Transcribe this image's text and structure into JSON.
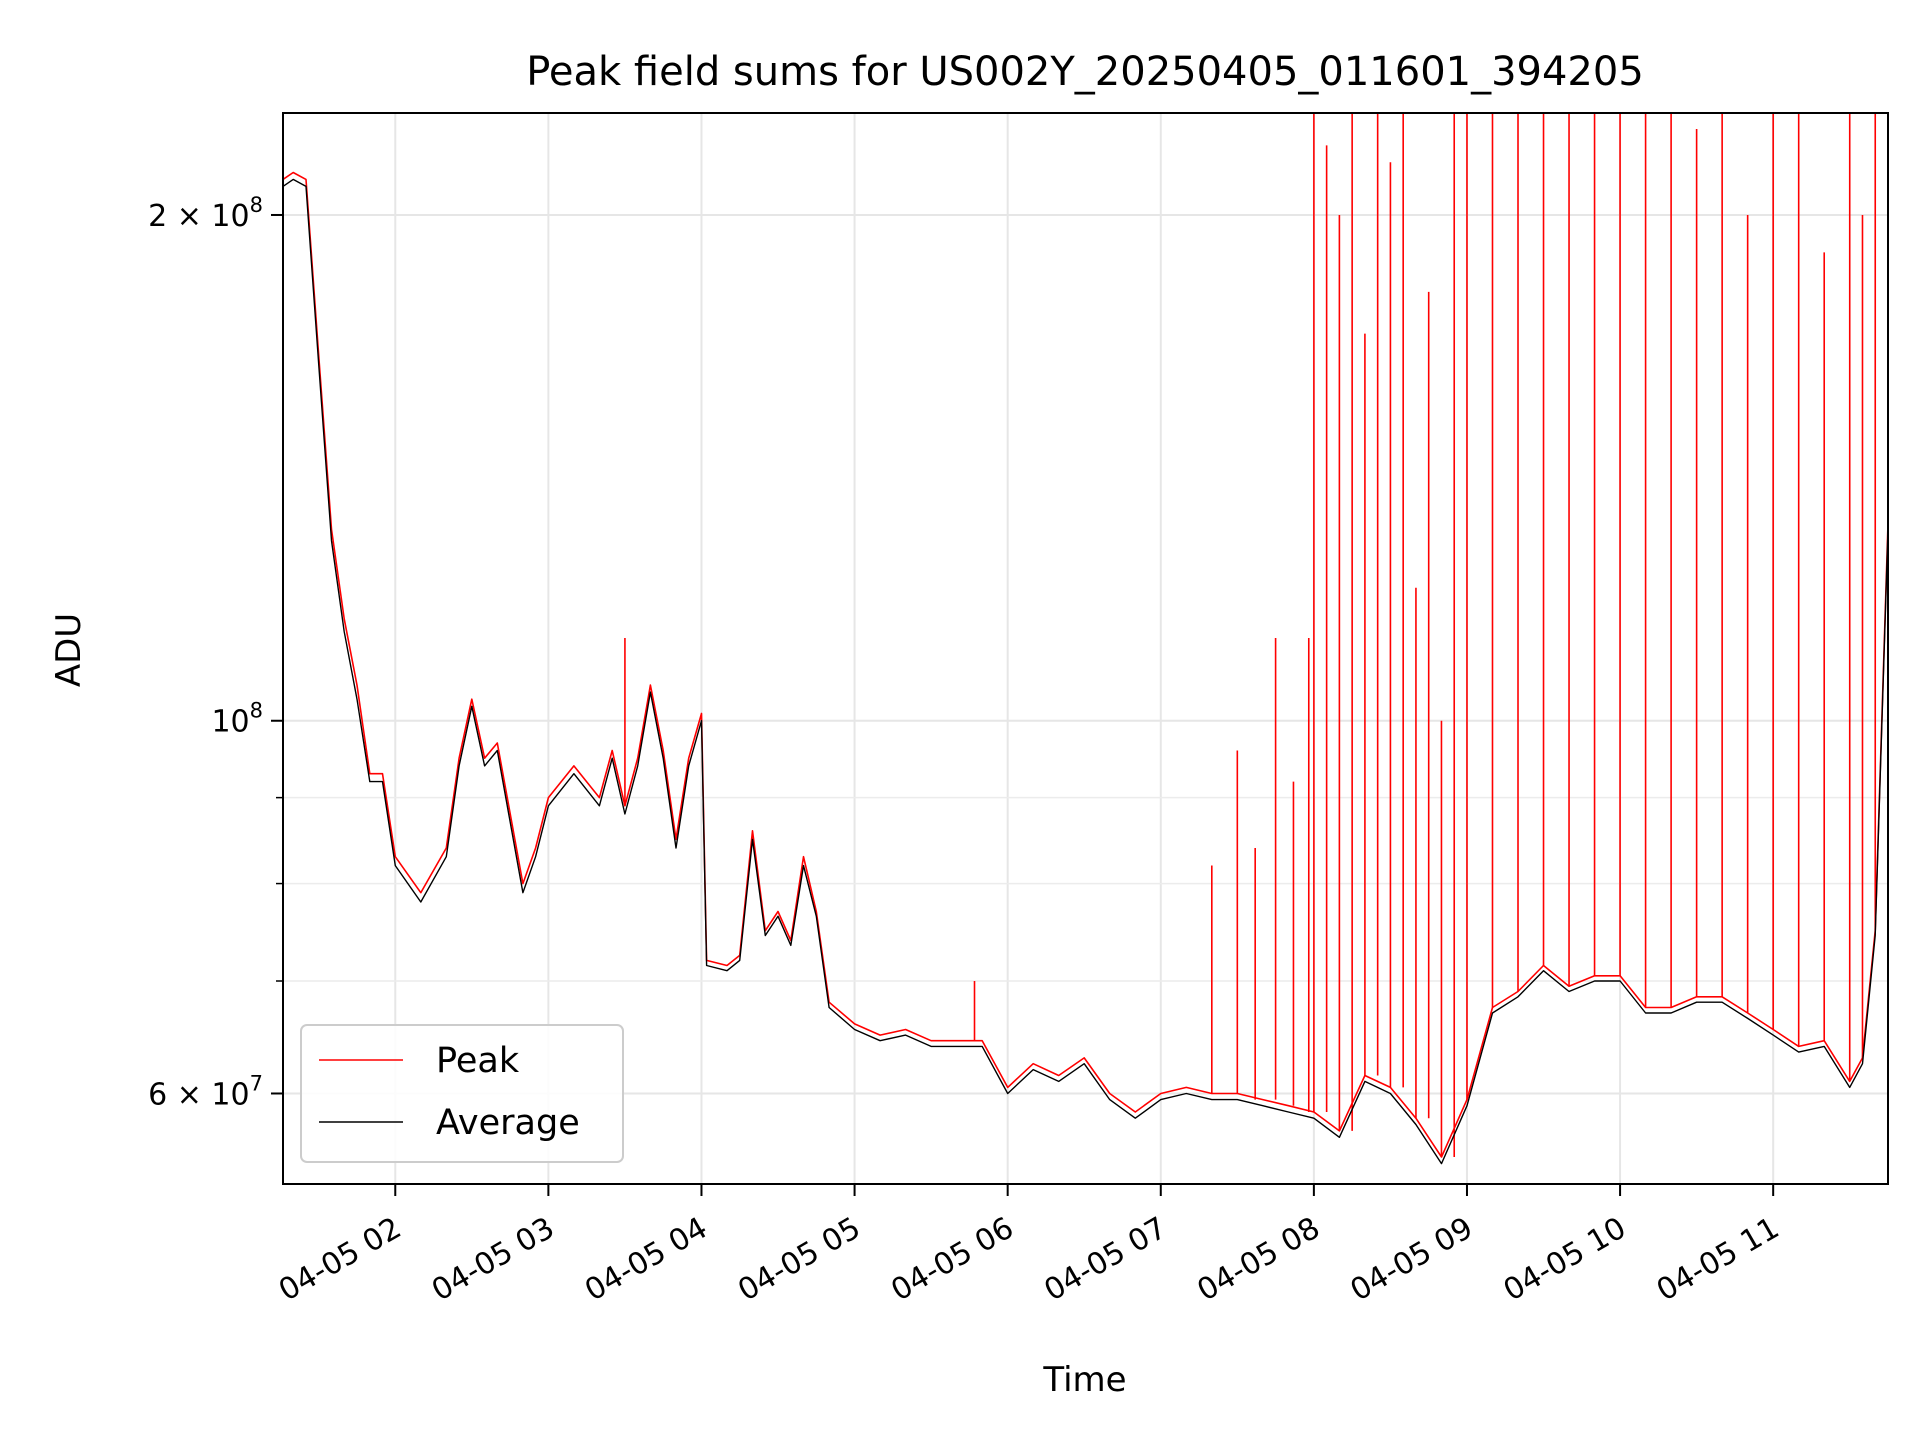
{
  "chart_data": {
    "type": "line",
    "title": "Peak field sums for US002Y_20250405_011601_394205",
    "xlabel": "Time",
    "ylabel": "ADU",
    "x_range": [
      "2025-04-05 01:16",
      "2025-04-05 11:45"
    ],
    "ylim": [
      53000000,
      230000000
    ],
    "y_scale": "log",
    "grid": true,
    "legend_position": "lower-left",
    "x_ticks": [
      {
        "time": "2025-04-05 02:00",
        "label": "04-05 02"
      },
      {
        "time": "2025-04-05 03:00",
        "label": "04-05 03"
      },
      {
        "time": "2025-04-05 04:00",
        "label": "04-05 04"
      },
      {
        "time": "2025-04-05 05:00",
        "label": "04-05 05"
      },
      {
        "time": "2025-04-05 06:00",
        "label": "04-05 06"
      },
      {
        "time": "2025-04-05 07:00",
        "label": "04-05 07"
      },
      {
        "time": "2025-04-05 08:00",
        "label": "04-05 08"
      },
      {
        "time": "2025-04-05 09:00",
        "label": "04-05 09"
      },
      {
        "time": "2025-04-05 10:00",
        "label": "04-05 10"
      },
      {
        "time": "2025-04-05 11:00",
        "label": "04-05 11"
      }
    ],
    "y_ticks": [
      {
        "value": 60000000,
        "base": "6 × 10",
        "exp": "7"
      },
      {
        "value": 100000000,
        "base": "10",
        "exp": "8"
      },
      {
        "value": 200000000,
        "base": "2 × 10",
        "exp": "8"
      }
    ],
    "y_minor_ticks": [
      70000000,
      80000000,
      90000000
    ],
    "series": [
      {
        "name": "Peak",
        "color": "#ff0000",
        "x": [
          "2025-04-05 01:16",
          "2025-04-05 01:20",
          "2025-04-05 01:25",
          "2025-04-05 01:30",
          "2025-04-05 01:35",
          "2025-04-05 01:40",
          "2025-04-05 01:45",
          "2025-04-05 01:50",
          "2025-04-05 01:55",
          "2025-04-05 02:00",
          "2025-04-05 02:10",
          "2025-04-05 02:20",
          "2025-04-05 02:25",
          "2025-04-05 02:30",
          "2025-04-05 02:35",
          "2025-04-05 02:40",
          "2025-04-05 02:50",
          "2025-04-05 02:55",
          "2025-04-05 03:00",
          "2025-04-05 03:10",
          "2025-04-05 03:20",
          "2025-04-05 03:25",
          "2025-04-05 03:30",
          "2025-04-05 03:35",
          "2025-04-05 03:40",
          "2025-04-05 03:45",
          "2025-04-05 03:50",
          "2025-04-05 03:55",
          "2025-04-05 04:00",
          "2025-04-05 04:02",
          "2025-04-05 04:10",
          "2025-04-05 04:15",
          "2025-04-05 04:20",
          "2025-04-05 04:25",
          "2025-04-05 04:30",
          "2025-04-05 04:35",
          "2025-04-05 04:40",
          "2025-04-05 04:45",
          "2025-04-05 04:50",
          "2025-04-05 05:00",
          "2025-04-05 05:10",
          "2025-04-05 05:20",
          "2025-04-05 05:30",
          "2025-04-05 05:40",
          "2025-04-05 05:50",
          "2025-04-05 06:00",
          "2025-04-05 06:10",
          "2025-04-05 06:20",
          "2025-04-05 06:30",
          "2025-04-05 06:40",
          "2025-04-05 06:50",
          "2025-04-05 07:00",
          "2025-04-05 07:10",
          "2025-04-05 07:20",
          "2025-04-05 07:30",
          "2025-04-05 07:40",
          "2025-04-05 07:50",
          "2025-04-05 08:00",
          "2025-04-05 08:10",
          "2025-04-05 08:20",
          "2025-04-05 08:30",
          "2025-04-05 08:40",
          "2025-04-05 08:50",
          "2025-04-05 09:00",
          "2025-04-05 09:10",
          "2025-04-05 09:20",
          "2025-04-05 09:30",
          "2025-04-05 09:40",
          "2025-04-05 09:50",
          "2025-04-05 10:00",
          "2025-04-05 10:10",
          "2025-04-05 10:20",
          "2025-04-05 10:30",
          "2025-04-05 10:40",
          "2025-04-05 10:50",
          "2025-04-05 11:00",
          "2025-04-05 11:10",
          "2025-04-05 11:20",
          "2025-04-05 11:30",
          "2025-04-05 11:35",
          "2025-04-05 11:40",
          "2025-04-05 11:45"
        ],
        "y": [
          210000000,
          212000000,
          210000000,
          165000000,
          130000000,
          115000000,
          105000000,
          93000000,
          93000000,
          83000000,
          79000000,
          84000000,
          95000000,
          103000000,
          95000000,
          97000000,
          80000000,
          84000000,
          90000000,
          94000000,
          90000000,
          96000000,
          89000000,
          95000000,
          105000000,
          96000000,
          85000000,
          95000000,
          101000000,
          72000000,
          71500000,
          72500000,
          86000000,
          75000000,
          77000000,
          74000000,
          83000000,
          77000000,
          68000000,
          66000000,
          65000000,
          65500000,
          64500000,
          64500000,
          64500000,
          60500000,
          62500000,
          61500000,
          63000000,
          60000000,
          58500000,
          60000000,
          60500000,
          60000000,
          60000000,
          59500000,
          59000000,
          58500000,
          57000000,
          61500000,
          60500000,
          58000000,
          55000000,
          59500000,
          67500000,
          69000000,
          71500000,
          69500000,
          70500000,
          70500000,
          67500000,
          67500000,
          68500000,
          68500000,
          67000000,
          65500000,
          64000000,
          64500000,
          61000000,
          63000000,
          75000000,
          131000000
        ],
        "spikes": [
          {
            "x": "2025-04-05 03:30",
            "y": 112000000
          },
          {
            "x": "2025-04-05 05:47",
            "y": 70000000
          },
          {
            "x": "2025-04-05 07:20",
            "y": 82000000
          },
          {
            "x": "2025-04-05 07:30",
            "y": 96000000
          },
          {
            "x": "2025-04-05 07:37",
            "y": 84000000
          },
          {
            "x": "2025-04-05 07:45",
            "y": 112000000
          },
          {
            "x": "2025-04-05 07:52",
            "y": 92000000
          },
          {
            "x": "2025-04-05 07:58",
            "y": 112000000
          },
          {
            "x": "2025-04-05 08:00",
            "y": 230000000
          },
          {
            "x": "2025-04-05 08:05",
            "y": 220000000
          },
          {
            "x": "2025-04-05 08:10",
            "y": 200000000
          },
          {
            "x": "2025-04-05 08:15",
            "y": 230000000
          },
          {
            "x": "2025-04-05 08:20",
            "y": 170000000
          },
          {
            "x": "2025-04-05 08:25",
            "y": 230000000
          },
          {
            "x": "2025-04-05 08:30",
            "y": 215000000
          },
          {
            "x": "2025-04-05 08:35",
            "y": 230000000
          },
          {
            "x": "2025-04-05 08:40",
            "y": 120000000
          },
          {
            "x": "2025-04-05 08:45",
            "y": 180000000
          },
          {
            "x": "2025-04-05 08:50",
            "y": 100000000
          },
          {
            "x": "2025-04-05 08:55",
            "y": 230000000
          },
          {
            "x": "2025-04-05 09:00",
            "y": 230000000
          },
          {
            "x": "2025-04-05 09:10",
            "y": 230000000
          },
          {
            "x": "2025-04-05 09:20",
            "y": 230000000
          },
          {
            "x": "2025-04-05 09:30",
            "y": 230000000
          },
          {
            "x": "2025-04-05 09:40",
            "y": 230000000
          },
          {
            "x": "2025-04-05 09:50",
            "y": 230000000
          },
          {
            "x": "2025-04-05 10:00",
            "y": 230000000
          },
          {
            "x": "2025-04-05 10:10",
            "y": 230000000
          },
          {
            "x": "2025-04-05 10:20",
            "y": 230000000
          },
          {
            "x": "2025-04-05 10:30",
            "y": 225000000
          },
          {
            "x": "2025-04-05 10:40",
            "y": 230000000
          },
          {
            "x": "2025-04-05 10:50",
            "y": 200000000
          },
          {
            "x": "2025-04-05 11:00",
            "y": 230000000
          },
          {
            "x": "2025-04-05 11:10",
            "y": 230000000
          },
          {
            "x": "2025-04-05 11:20",
            "y": 190000000
          },
          {
            "x": "2025-04-05 11:30",
            "y": 230000000
          },
          {
            "x": "2025-04-05 11:35",
            "y": 200000000
          },
          {
            "x": "2025-04-05 11:40",
            "y": 230000000
          }
        ]
      },
      {
        "name": "Average",
        "color": "#000000",
        "x": [
          "2025-04-05 01:16",
          "2025-04-05 01:20",
          "2025-04-05 01:25",
          "2025-04-05 01:30",
          "2025-04-05 01:35",
          "2025-04-05 01:40",
          "2025-04-05 01:45",
          "2025-04-05 01:50",
          "2025-04-05 01:55",
          "2025-04-05 02:00",
          "2025-04-05 02:10",
          "2025-04-05 02:20",
          "2025-04-05 02:25",
          "2025-04-05 02:30",
          "2025-04-05 02:35",
          "2025-04-05 02:40",
          "2025-04-05 02:50",
          "2025-04-05 02:55",
          "2025-04-05 03:00",
          "2025-04-05 03:10",
          "2025-04-05 03:20",
          "2025-04-05 03:25",
          "2025-04-05 03:30",
          "2025-04-05 03:35",
          "2025-04-05 03:40",
          "2025-04-05 03:45",
          "2025-04-05 03:50",
          "2025-04-05 03:55",
          "2025-04-05 04:00",
          "2025-04-05 04:02",
          "2025-04-05 04:10",
          "2025-04-05 04:15",
          "2025-04-05 04:20",
          "2025-04-05 04:25",
          "2025-04-05 04:30",
          "2025-04-05 04:35",
          "2025-04-05 04:40",
          "2025-04-05 04:45",
          "2025-04-05 04:50",
          "2025-04-05 05:00",
          "2025-04-05 05:10",
          "2025-04-05 05:20",
          "2025-04-05 05:30",
          "2025-04-05 05:40",
          "2025-04-05 05:50",
          "2025-04-05 06:00",
          "2025-04-05 06:10",
          "2025-04-05 06:20",
          "2025-04-05 06:30",
          "2025-04-05 06:40",
          "2025-04-05 06:50",
          "2025-04-05 07:00",
          "2025-04-05 07:10",
          "2025-04-05 07:20",
          "2025-04-05 07:30",
          "2025-04-05 07:40",
          "2025-04-05 07:50",
          "2025-04-05 08:00",
          "2025-04-05 08:10",
          "2025-04-05 08:20",
          "2025-04-05 08:30",
          "2025-04-05 08:40",
          "2025-04-05 08:50",
          "2025-04-05 09:00",
          "2025-04-05 09:10",
          "2025-04-05 09:20",
          "2025-04-05 09:30",
          "2025-04-05 09:40",
          "2025-04-05 09:50",
          "2025-04-05 10:00",
          "2025-04-05 10:10",
          "2025-04-05 10:20",
          "2025-04-05 10:30",
          "2025-04-05 10:40",
          "2025-04-05 10:50",
          "2025-04-05 11:00",
          "2025-04-05 11:10",
          "2025-04-05 11:20",
          "2025-04-05 11:30",
          "2025-04-05 11:35",
          "2025-04-05 11:40",
          "2025-04-05 11:45"
        ],
        "y": [
          208000000,
          210000000,
          208000000,
          163000000,
          128000000,
          113000000,
          103000000,
          92000000,
          92000000,
          82000000,
          78000000,
          83000000,
          94000000,
          102000000,
          94000000,
          96000000,
          79000000,
          83000000,
          89000000,
          93000000,
          89000000,
          95000000,
          88000000,
          94000000,
          104000000,
          95000000,
          84000000,
          94000000,
          100000000,
          71500000,
          71000000,
          72000000,
          85000000,
          74500000,
          76500000,
          73500000,
          82000000,
          76500000,
          67500000,
          65500000,
          64500000,
          65000000,
          64000000,
          64000000,
          64000000,
          60000000,
          62000000,
          61000000,
          62500000,
          59500000,
          58000000,
          59500000,
          60000000,
          59500000,
          59500000,
          59000000,
          58500000,
          58000000,
          56500000,
          61000000,
          60000000,
          57500000,
          54500000,
          59000000,
          67000000,
          68500000,
          71000000,
          69000000,
          70000000,
          70000000,
          67000000,
          67000000,
          68000000,
          68000000,
          66500000,
          65000000,
          63500000,
          64000000,
          60500000,
          62500000,
          74500000,
          130000000
        ]
      }
    ]
  }
}
